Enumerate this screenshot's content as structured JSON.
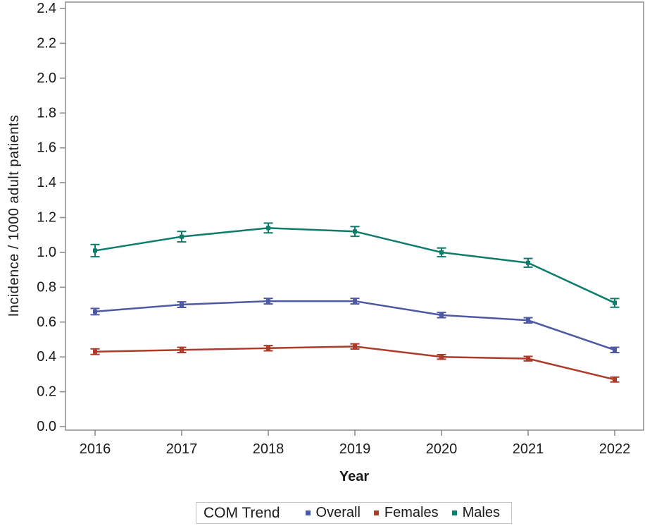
{
  "chart_data": {
    "type": "line",
    "x": [
      "2016",
      "2017",
      "2018",
      "2019",
      "2020",
      "2021",
      "2022"
    ],
    "xlabel": "Year",
    "ylabel": "Incidence / 1000 adult patients",
    "ylim": [
      0.0,
      2.4
    ],
    "ytick_step": 0.2,
    "grid": false,
    "error_bars": true,
    "legend_position": "bottom",
    "legend_title": "COM Trend",
    "series": [
      {
        "name": "Overall",
        "color": "#4E59A4",
        "values": [
          0.66,
          0.7,
          0.72,
          0.72,
          0.64,
          0.61,
          0.44
        ],
        "errors": [
          0.018,
          0.016,
          0.016,
          0.016,
          0.015,
          0.015,
          0.015
        ]
      },
      {
        "name": "Females",
        "color": "#AE3A2A",
        "values": [
          0.43,
          0.44,
          0.45,
          0.46,
          0.4,
          0.39,
          0.27
        ],
        "errors": [
          0.016,
          0.015,
          0.015,
          0.015,
          0.013,
          0.013,
          0.014
        ]
      },
      {
        "name": "Males",
        "color": "#0E7C6B",
        "values": [
          1.01,
          1.09,
          1.14,
          1.12,
          1.0,
          0.94,
          0.71
        ],
        "errors": [
          0.035,
          0.03,
          0.028,
          0.028,
          0.025,
          0.025,
          0.025
        ]
      }
    ]
  },
  "style_colors": {
    "frame": "#A9A9A9",
    "tick": "#8C8C8C",
    "text": "#1A1A1A",
    "background": "#FFFFFF"
  }
}
